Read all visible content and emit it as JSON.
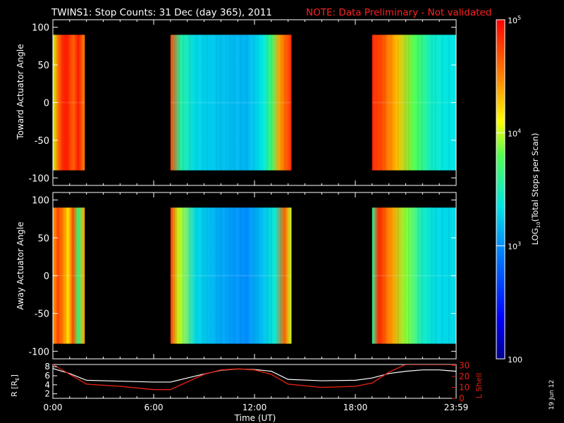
{
  "header": {
    "title": "TWINS1: Stop Counts: 31 Dec (day 365), 2011",
    "note": "NOTE: Data Preliminary - Not validated"
  },
  "colors": {
    "note": "#ff2020",
    "rshell": "#ffffff",
    "lshell": "#e02010",
    "background": "#000000"
  },
  "stamp": "19 Jun 12",
  "chart_data": [
    {
      "type": "heatmap",
      "panel": "toward",
      "ylabel": "Toward Actuator Angle",
      "ylim": [
        -110,
        110
      ],
      "yticks": [
        "100",
        "50",
        "0",
        "-50",
        "-100"
      ],
      "ytick_values": [
        100,
        50,
        0,
        -50,
        -100
      ],
      "angle_range": [
        -90,
        90
      ],
      "xlim_hours": [
        0,
        24
      ],
      "data_intervals_hours": [
        [
          0.0,
          1.9
        ],
        [
          7.0,
          14.2
        ],
        [
          19.0,
          24.0
        ]
      ],
      "log10_counts_profile": [
        {
          "interval": 0,
          "t": [
            0.0,
            0.3,
            0.6,
            0.9,
            1.2,
            1.5,
            1.9
          ],
          "v": [
            4.0,
            4.55,
            4.85,
            4.9,
            4.6,
            4.9,
            4.5
          ]
        },
        {
          "interval": 1,
          "t": [
            7.0,
            7.6,
            8.5,
            10.0,
            11.5,
            12.5,
            13.0,
            13.5,
            14.2
          ],
          "v": [
            4.75,
            3.55,
            3.3,
            3.2,
            3.15,
            3.35,
            3.7,
            4.4,
            4.85
          ]
        },
        {
          "interval": 2,
          "t": [
            19.0,
            19.6,
            20.5,
            21.5,
            22.5,
            23.5,
            24.0
          ],
          "v": [
            4.85,
            4.7,
            4.3,
            3.8,
            3.45,
            3.35,
            3.35
          ]
        }
      ]
    },
    {
      "type": "heatmap",
      "panel": "away",
      "ylabel": "Away Actuator Angle",
      "ylim": [
        -110,
        110
      ],
      "yticks": [
        "100",
        "50",
        "0",
        "-50",
        "-100"
      ],
      "ytick_values": [
        100,
        50,
        0,
        -50,
        -100
      ],
      "angle_range": [
        -90,
        90
      ],
      "xlim_hours": [
        0,
        24
      ],
      "data_intervals_hours": [
        [
          0.0,
          1.9
        ],
        [
          7.0,
          14.2
        ],
        [
          19.0,
          24.0
        ]
      ],
      "log10_counts_profile": [
        {
          "interval": 0,
          "t": [
            0.0,
            0.3,
            0.6,
            0.9,
            1.2,
            1.5,
            1.9
          ],
          "v": [
            4.4,
            4.75,
            4.5,
            4.2,
            4.7,
            3.7,
            4.4
          ]
        },
        {
          "interval": 1,
          "t": [
            7.0,
            7.5,
            8.5,
            10.0,
            11.5,
            12.5,
            13.2,
            13.8,
            14.2
          ],
          "v": [
            4.8,
            4.0,
            3.3,
            3.1,
            3.0,
            3.2,
            3.4,
            4.6,
            4.0
          ]
        },
        {
          "interval": 2,
          "t": [
            19.0,
            19.4,
            20.2,
            21.0,
            22.0,
            23.0,
            24.0
          ],
          "v": [
            3.6,
            4.85,
            4.4,
            3.9,
            3.45,
            3.3,
            3.3
          ]
        }
      ]
    },
    {
      "type": "line",
      "panel": "orbit",
      "x_hours": [
        0,
        1,
        2,
        4,
        6,
        7,
        8,
        9,
        10,
        11,
        12,
        13,
        14,
        16,
        18,
        19,
        20,
        21,
        22,
        23,
        24
      ],
      "series": [
        {
          "key": "rshell",
          "values": [
            7.6,
            6.5,
            5.0,
            4.8,
            4.6,
            4.6,
            5.5,
            6.4,
            7.2,
            7.5,
            7.4,
            7.0,
            5.2,
            4.9,
            5.0,
            5.5,
            6.5,
            7.0,
            7.3,
            7.3,
            7.0
          ]
        },
        {
          "key": "lshell",
          "values": [
            31,
            22,
            13,
            11,
            8,
            8,
            15,
            22,
            26,
            27,
            26,
            22,
            13,
            10,
            11,
            14,
            24,
            31,
            31,
            31,
            31
          ]
        }
      ],
      "left_axis": {
        "label": "R [RE]",
        "label_main": "R [R",
        "label_sub": "E",
        "label_end": "]",
        "ylim": [
          1,
          8.5
        ],
        "ticks": [
          "8",
          "6",
          "4",
          "2"
        ],
        "tick_values": [
          8,
          6,
          4,
          2
        ]
      },
      "right_axis": {
        "label": "L Shell",
        "ylim": [
          0,
          31
        ],
        "ticks": [
          "30",
          "20",
          "10",
          "0"
        ],
        "tick_values": [
          30,
          20,
          10,
          0
        ]
      },
      "xlabel": "Time (UT)",
      "xticks": [
        "0:00",
        "6:00",
        "12:00",
        "18:00",
        "23:59"
      ],
      "xtick_hours": [
        0,
        6,
        12,
        18,
        24
      ]
    }
  ],
  "colorbar": {
    "label_main": "LOG",
    "label_sub": "10",
    "label_end": "(Total Stops per Scan)",
    "min": 2,
    "max": 5,
    "ticks": [
      {
        "value": 5,
        "base": "10",
        "exp": "5"
      },
      {
        "value": 4,
        "base": "10",
        "exp": "4"
      },
      {
        "value": 3,
        "base": "10",
        "exp": "3"
      },
      {
        "value": 2,
        "base": "100",
        "exp": ""
      }
    ]
  }
}
